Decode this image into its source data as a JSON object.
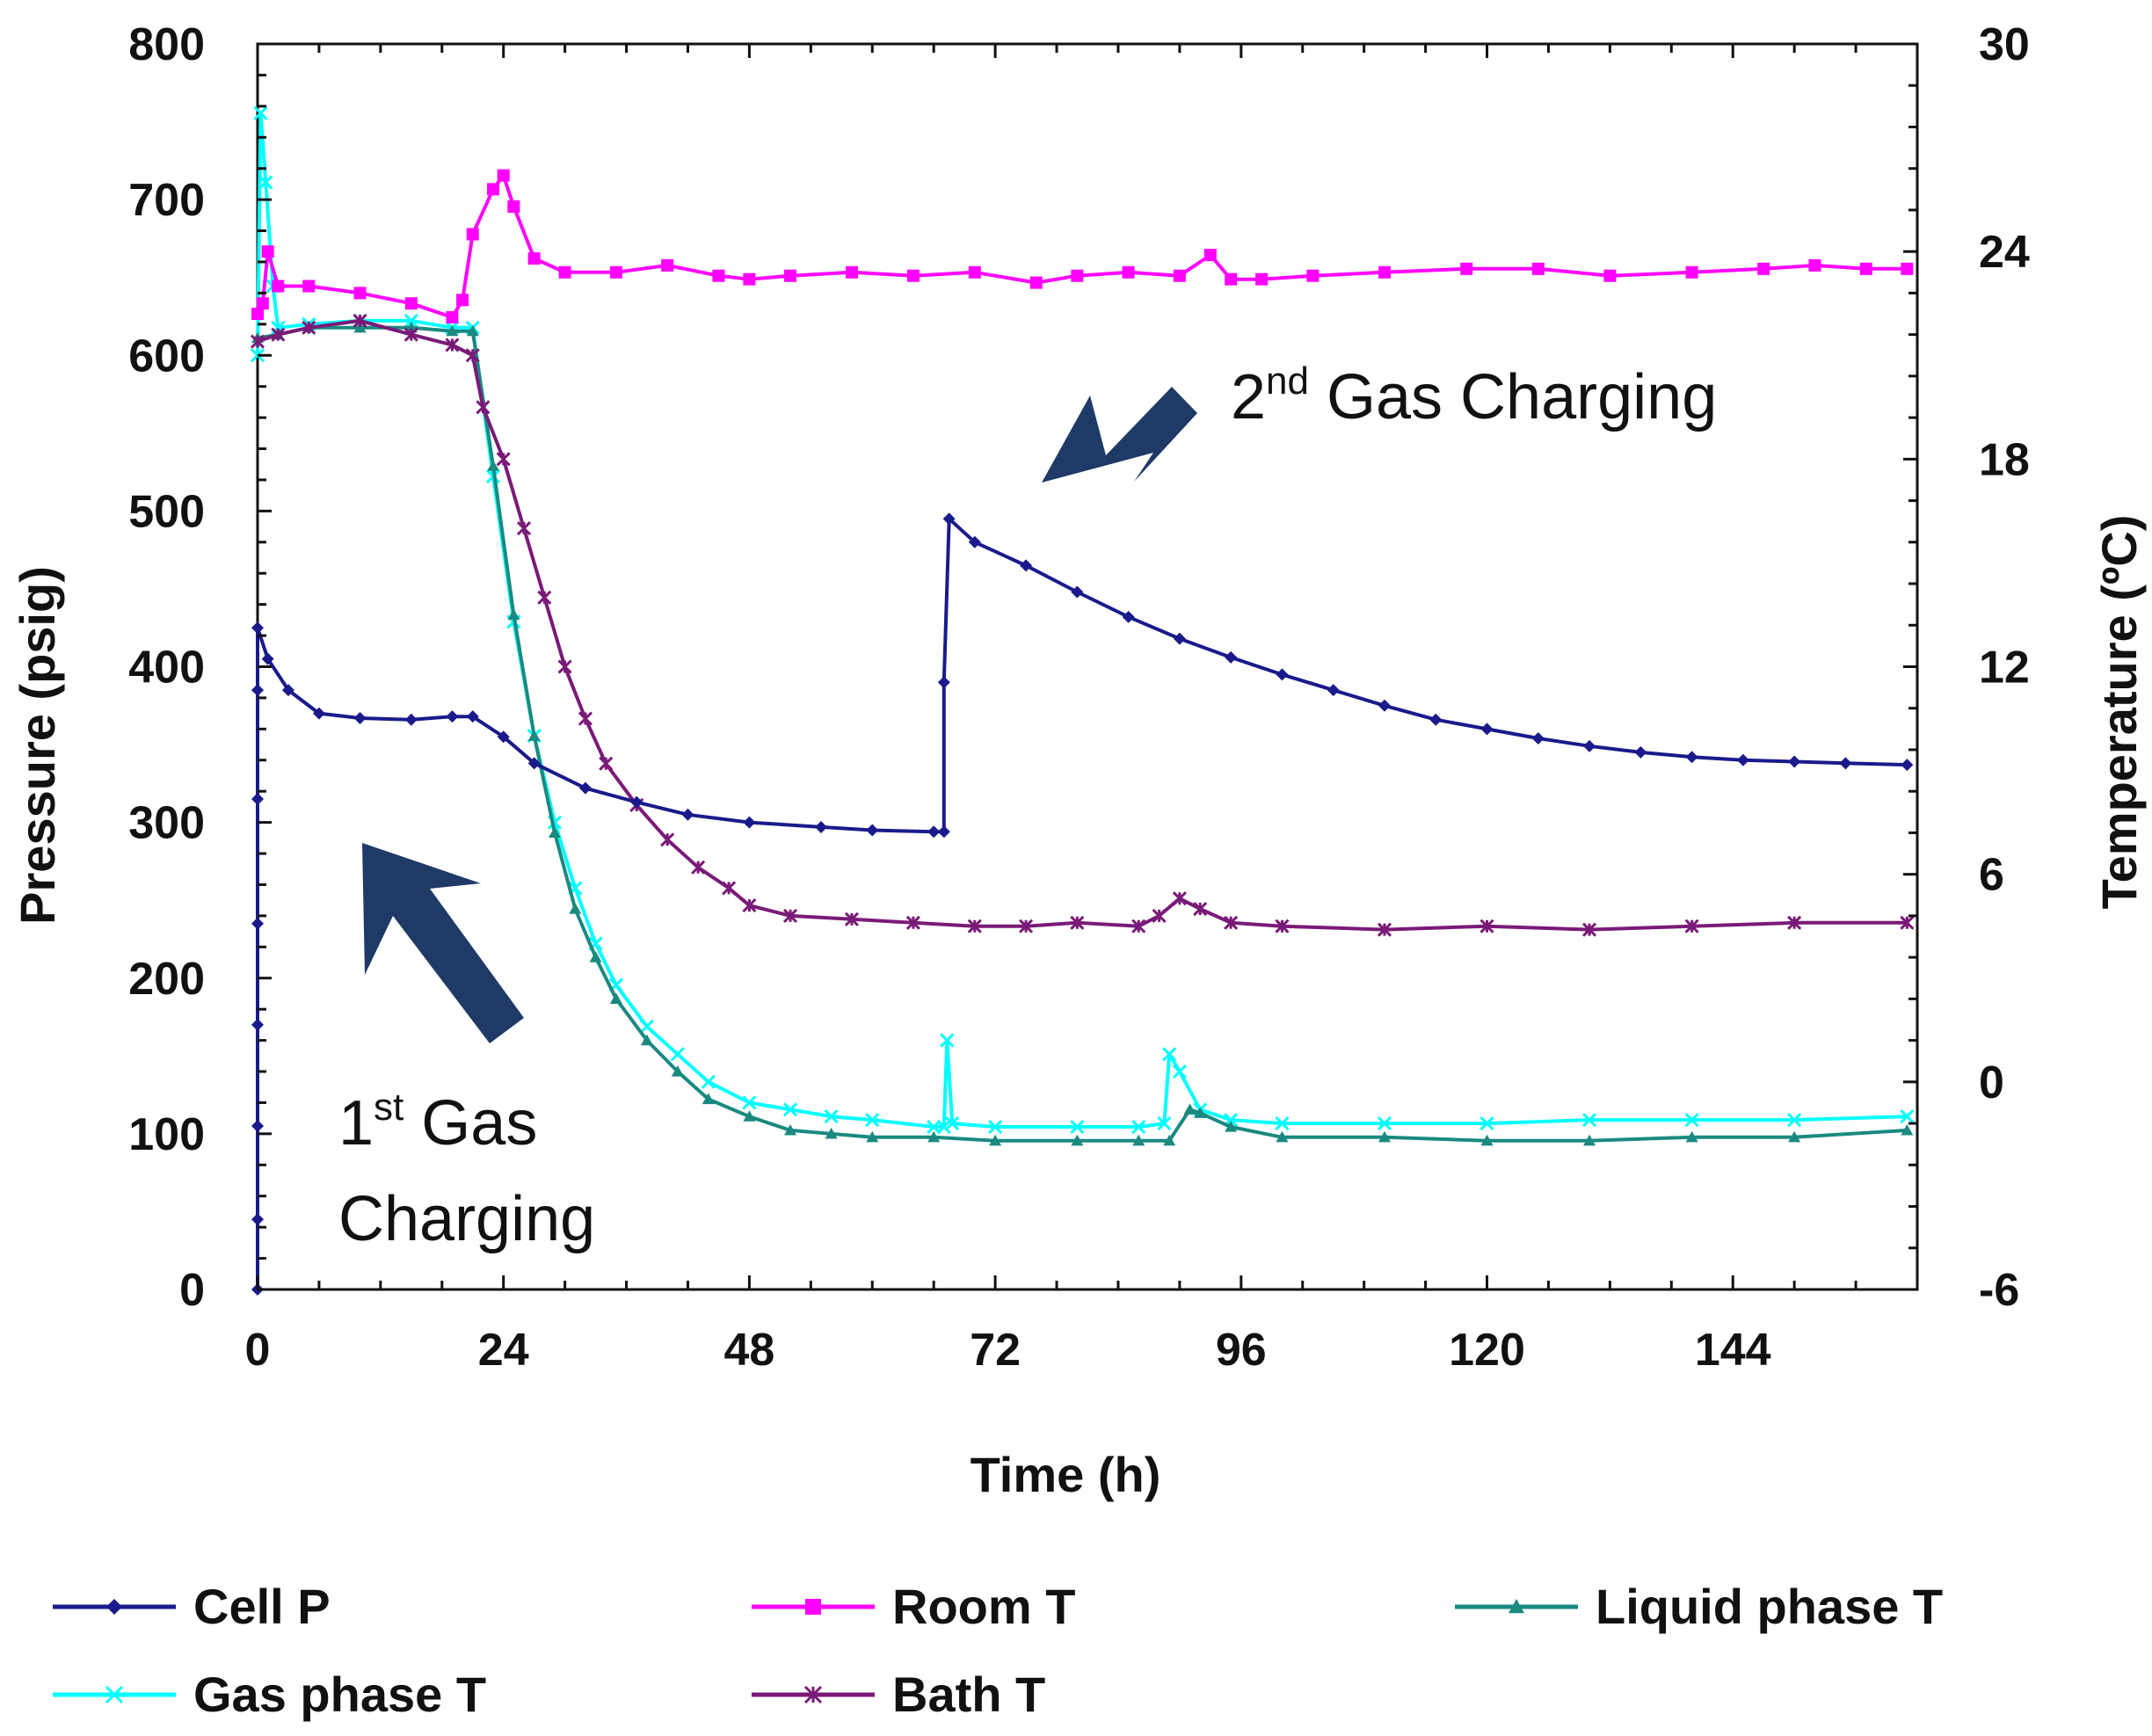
{
  "chart_data": {
    "type": "line",
    "xlabel": "Time  (h)",
    "ylabel_left": "Pressure  (psig)",
    "ylabel_right": "Temperature  (ºC)",
    "xlim": [
      0,
      162
    ],
    "xticks": [
      0,
      24,
      48,
      72,
      96,
      120,
      144
    ],
    "ylim_left": [
      0,
      800
    ],
    "yticks_left": [
      0,
      100,
      200,
      300,
      400,
      500,
      600,
      700,
      800
    ],
    "ylim_right": [
      -6,
      30
    ],
    "yticks_right": [
      -6,
      0,
      6,
      12,
      18,
      24,
      30
    ],
    "legend_position": "bottom",
    "grid": false,
    "series": [
      {
        "name": "Cell P",
        "axis": "left",
        "color": "#1a1a8c",
        "marker": "diamond",
        "points": [
          [
            0,
            0
          ],
          [
            0,
            45
          ],
          [
            0,
            105
          ],
          [
            0,
            170
          ],
          [
            0,
            235
          ],
          [
            0,
            315
          ],
          [
            0,
            385
          ],
          [
            0,
            425
          ],
          [
            1,
            405
          ],
          [
            3,
            385
          ],
          [
            6,
            370
          ],
          [
            10,
            367
          ],
          [
            15,
            366
          ],
          [
            19,
            368
          ],
          [
            21,
            368
          ],
          [
            24,
            355
          ],
          [
            27,
            338
          ],
          [
            32,
            322
          ],
          [
            37,
            313
          ],
          [
            42,
            305
          ],
          [
            48,
            300
          ],
          [
            55,
            297
          ],
          [
            60,
            295
          ],
          [
            66,
            294
          ],
          [
            67,
            294
          ],
          [
            67,
            390
          ],
          [
            67.5,
            495
          ],
          [
            70,
            480
          ],
          [
            75,
            465
          ],
          [
            80,
            448
          ],
          [
            85,
            432
          ],
          [
            90,
            418
          ],
          [
            95,
            406
          ],
          [
            100,
            395
          ],
          [
            105,
            385
          ],
          [
            110,
            375
          ],
          [
            115,
            366
          ],
          [
            120,
            360
          ],
          [
            125,
            354
          ],
          [
            130,
            349
          ],
          [
            135,
            345
          ],
          [
            140,
            342
          ],
          [
            145,
            340
          ],
          [
            150,
            339
          ],
          [
            155,
            338
          ],
          [
            161,
            337
          ]
        ]
      },
      {
        "name": "Room T",
        "axis": "right",
        "color": "#ff00ff",
        "marker": "square",
        "points": [
          [
            0,
            22.2
          ],
          [
            0.5,
            22.5
          ],
          [
            1,
            24.0
          ],
          [
            2,
            23.0
          ],
          [
            5,
            23.0
          ],
          [
            10,
            22.8
          ],
          [
            15,
            22.5
          ],
          [
            19,
            22.1
          ],
          [
            20,
            22.6
          ],
          [
            21,
            24.5
          ],
          [
            23,
            25.8
          ],
          [
            24,
            26.2
          ],
          [
            25,
            25.3
          ],
          [
            27,
            23.8
          ],
          [
            30,
            23.4
          ],
          [
            35,
            23.4
          ],
          [
            40,
            23.6
          ],
          [
            45,
            23.3
          ],
          [
            48,
            23.2
          ],
          [
            52,
            23.3
          ],
          [
            58,
            23.4
          ],
          [
            64,
            23.3
          ],
          [
            70,
            23.4
          ],
          [
            76,
            23.1
          ],
          [
            80,
            23.3
          ],
          [
            85,
            23.4
          ],
          [
            90,
            23.3
          ],
          [
            93,
            23.9
          ],
          [
            95,
            23.2
          ],
          [
            98,
            23.2
          ],
          [
            103,
            23.3
          ],
          [
            110,
            23.4
          ],
          [
            118,
            23.5
          ],
          [
            125,
            23.5
          ],
          [
            132,
            23.3
          ],
          [
            140,
            23.4
          ],
          [
            147,
            23.5
          ],
          [
            152,
            23.6
          ],
          [
            157,
            23.5
          ],
          [
            161,
            23.5
          ]
        ]
      },
      {
        "name": "Liquid phase T",
        "axis": "right",
        "color": "#1a8a80",
        "marker": "triangle",
        "points": [
          [
            0,
            21.5
          ],
          [
            2,
            21.6
          ],
          [
            5,
            21.8
          ],
          [
            10,
            21.8
          ],
          [
            15,
            21.8
          ],
          [
            19,
            21.7
          ],
          [
            21,
            21.7
          ],
          [
            23,
            17.8
          ],
          [
            25,
            13.5
          ],
          [
            27,
            10.0
          ],
          [
            29,
            7.2
          ],
          [
            31,
            5.0
          ],
          [
            33,
            3.6
          ],
          [
            35,
            2.4
          ],
          [
            38,
            1.2
          ],
          [
            41,
            0.3
          ],
          [
            44,
            -0.5
          ],
          [
            48,
            -1.0
          ],
          [
            52,
            -1.4
          ],
          [
            56,
            -1.5
          ],
          [
            60,
            -1.6
          ],
          [
            66,
            -1.6
          ],
          [
            72,
            -1.7
          ],
          [
            80,
            -1.7
          ],
          [
            86,
            -1.7
          ],
          [
            89,
            -1.7
          ],
          [
            91,
            -0.8
          ],
          [
            92,
            -0.9
          ],
          [
            95,
            -1.3
          ],
          [
            100,
            -1.6
          ],
          [
            110,
            -1.6
          ],
          [
            120,
            -1.7
          ],
          [
            130,
            -1.7
          ],
          [
            140,
            -1.6
          ],
          [
            150,
            -1.6
          ],
          [
            161,
            -1.4
          ]
        ]
      },
      {
        "name": "Gas phase T",
        "axis": "right",
        "color": "#00ffff",
        "marker": "x",
        "points": [
          [
            0,
            21.0
          ],
          [
            0.3,
            28.0
          ],
          [
            0.8,
            26.0
          ],
          [
            1.5,
            23.0
          ],
          [
            2,
            21.8
          ],
          [
            5,
            21.9
          ],
          [
            10,
            22.0
          ],
          [
            15,
            22.0
          ],
          [
            19,
            21.8
          ],
          [
            21,
            21.8
          ],
          [
            23,
            17.5
          ],
          [
            25,
            13.3
          ],
          [
            27,
            10.0
          ],
          [
            29,
            7.5
          ],
          [
            31,
            5.6
          ],
          [
            33,
            4.0
          ],
          [
            35,
            2.8
          ],
          [
            38,
            1.6
          ],
          [
            41,
            0.8
          ],
          [
            44,
            0.0
          ],
          [
            48,
            -0.6
          ],
          [
            52,
            -0.8
          ],
          [
            56,
            -1.0
          ],
          [
            60,
            -1.1
          ],
          [
            66,
            -1.3
          ],
          [
            67,
            -1.3
          ],
          [
            67.3,
            1.2
          ],
          [
            67.8,
            -1.2
          ],
          [
            72,
            -1.3
          ],
          [
            80,
            -1.3
          ],
          [
            86,
            -1.3
          ],
          [
            88.5,
            -1.2
          ],
          [
            89,
            0.8
          ],
          [
            90,
            0.3
          ],
          [
            92,
            -0.8
          ],
          [
            95,
            -1.1
          ],
          [
            100,
            -1.2
          ],
          [
            110,
            -1.2
          ],
          [
            120,
            -1.2
          ],
          [
            130,
            -1.1
          ],
          [
            140,
            -1.1
          ],
          [
            150,
            -1.1
          ],
          [
            161,
            -1.0
          ]
        ]
      },
      {
        "name": "Bath T",
        "axis": "right",
        "color": "#7a1a78",
        "marker": "star",
        "points": [
          [
            0,
            21.4
          ],
          [
            2,
            21.6
          ],
          [
            5,
            21.8
          ],
          [
            10,
            22.0
          ],
          [
            15,
            21.6
          ],
          [
            19,
            21.3
          ],
          [
            21,
            21.0
          ],
          [
            22,
            19.5
          ],
          [
            24,
            18.0
          ],
          [
            26,
            16.0
          ],
          [
            28,
            14.0
          ],
          [
            30,
            12.0
          ],
          [
            32,
            10.5
          ],
          [
            34,
            9.2
          ],
          [
            37,
            8.0
          ],
          [
            40,
            7.0
          ],
          [
            43,
            6.2
          ],
          [
            46,
            5.6
          ],
          [
            48,
            5.1
          ],
          [
            52,
            4.8
          ],
          [
            58,
            4.7
          ],
          [
            64,
            4.6
          ],
          [
            70,
            4.5
          ],
          [
            75,
            4.5
          ],
          [
            80,
            4.6
          ],
          [
            86,
            4.5
          ],
          [
            88,
            4.8
          ],
          [
            90,
            5.3
          ],
          [
            92,
            5.0
          ],
          [
            95,
            4.6
          ],
          [
            100,
            4.5
          ],
          [
            110,
            4.4
          ],
          [
            120,
            4.5
          ],
          [
            130,
            4.4
          ],
          [
            140,
            4.5
          ],
          [
            150,
            4.6
          ],
          [
            161,
            4.6
          ]
        ]
      }
    ],
    "annotations": [
      {
        "id": "first",
        "prefix": "1",
        "sup": "st",
        "line1": " Gas",
        "line2": "Charging"
      },
      {
        "id": "second",
        "prefix": "2",
        "sup": "nd",
        "text": " Gas Charging"
      }
    ]
  }
}
